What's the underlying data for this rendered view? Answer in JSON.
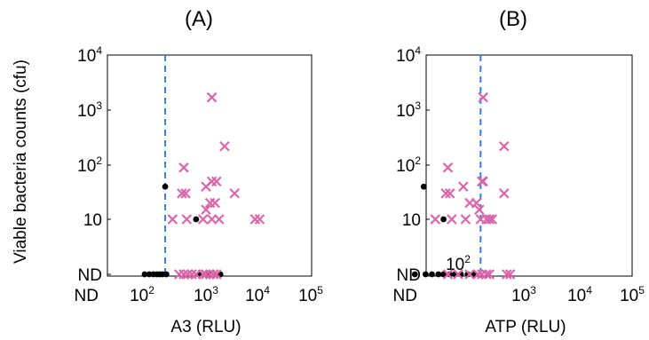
{
  "chart_data": [
    {
      "type": "scatter",
      "title": "(A)",
      "xlabel": "A3 (RLU)",
      "ylabel": "Viable bacteria counts (cfu)",
      "x_scale": "log",
      "y_scale": "log",
      "x_ticks": [
        {
          "value": "nd",
          "base": "ND",
          "exp": ""
        },
        {
          "value": 100,
          "base": "10",
          "exp": "2"
        },
        {
          "value": 1000,
          "base": "10",
          "exp": "3"
        },
        {
          "value": 10000,
          "base": "10",
          "exp": "4"
        },
        {
          "value": 100000,
          "base": "10",
          "exp": "5"
        }
      ],
      "y_ticks": [
        {
          "value": "nd",
          "base": "ND",
          "exp": ""
        },
        {
          "value": 10,
          "base": "10",
          "exp": ""
        },
        {
          "value": 100,
          "base": "10",
          "exp": "2"
        },
        {
          "value": 1000,
          "base": "10",
          "exp": "3"
        },
        {
          "value": 10000,
          "base": "10",
          "exp": "4"
        }
      ],
      "cutoff_x": 230,
      "series": [
        {
          "marker": "dot",
          "color": "#000000",
          "points": [
            [
              230,
              40
            ],
            [
              700,
              10
            ],
            [
              110,
              "ND"
            ],
            [
              130,
              "ND"
            ],
            [
              150,
              "ND"
            ],
            [
              170,
              "ND"
            ],
            [
              190,
              "ND"
            ],
            [
              210,
              "ND"
            ],
            [
              240,
              "ND"
            ],
            [
              800,
              "ND"
            ],
            [
              1100,
              "ND"
            ],
            [
              1900,
              "ND"
            ]
          ]
        },
        {
          "marker": "cross",
          "color": "#d966a8",
          "points": [
            [
              1300,
              1700
            ],
            [
              2300,
              220
            ],
            [
              450,
              90
            ],
            [
              1300,
              50
            ],
            [
              1600,
              50
            ],
            [
              1000,
              40
            ],
            [
              420,
              30
            ],
            [
              480,
              30
            ],
            [
              3600,
              30
            ],
            [
              1200,
              20
            ],
            [
              1500,
              20
            ],
            [
              1000,
              15
            ],
            [
              300,
              10
            ],
            [
              500,
              10
            ],
            [
              900,
              10
            ],
            [
              1300,
              10
            ],
            [
              1800,
              10
            ],
            [
              9000,
              10
            ],
            [
              11000,
              10
            ],
            [
              380,
              "ND"
            ],
            [
              450,
              "ND"
            ],
            [
              520,
              "ND"
            ],
            [
              600,
              "ND"
            ],
            [
              700,
              "ND"
            ],
            [
              900,
              "ND"
            ],
            [
              1000,
              "ND"
            ],
            [
              1200,
              "ND"
            ],
            [
              1400,
              "ND"
            ],
            [
              1600,
              "ND"
            ]
          ]
        }
      ]
    },
    {
      "type": "scatter",
      "title": "(B)",
      "xlabel": "ATP (RLU)",
      "ylabel": "",
      "x_scale": "log",
      "y_scale": "log",
      "x_ticks": [
        {
          "value": "nd",
          "base": "ND",
          "exp": ""
        },
        {
          "value": 1000,
          "base": "10",
          "exp": "3"
        },
        {
          "value": 10000,
          "base": "10",
          "exp": "4"
        },
        {
          "value": 100000,
          "base": "10",
          "exp": "5"
        }
      ],
      "y_ticks": [
        {
          "value": "nd",
          "base": "ND",
          "exp": ""
        },
        {
          "value": 10,
          "base": "10",
          "exp": ""
        },
        {
          "value": 100,
          "base": "10",
          "exp": "2"
        },
        {
          "value": 1000,
          "base": "10",
          "exp": "3"
        },
        {
          "value": 10000,
          "base": "10",
          "exp": "4"
        }
      ],
      "inner_tick": {
        "value": 100,
        "base": "10",
        "exp": "2"
      },
      "cutoff_x": 220,
      "series": [
        {
          "marker": "dot",
          "color": "#000000",
          "points": [
            [
              30,
              40
            ],
            [
              60,
              10
            ],
            [
              22,
              "ND"
            ],
            [
              32,
              "ND"
            ],
            [
              40,
              "ND"
            ],
            [
              50,
              "ND"
            ],
            [
              60,
              "ND"
            ],
            [
              75,
              "ND"
            ],
            [
              90,
              "ND"
            ],
            [
              110,
              "ND"
            ],
            [
              140,
              "ND"
            ],
            [
              170,
              "ND"
            ]
          ]
        },
        {
          "marker": "cross",
          "color": "#d966a8",
          "points": [
            [
              240,
              1700
            ],
            [
              500,
              220
            ],
            [
              70,
              90
            ],
            [
              230,
              50
            ],
            [
              240,
              50
            ],
            [
              120,
              40
            ],
            [
              65,
              30
            ],
            [
              75,
              30
            ],
            [
              500,
              30
            ],
            [
              150,
              20
            ],
            [
              190,
              20
            ],
            [
              210,
              15
            ],
            [
              45,
              10
            ],
            [
              80,
              10
            ],
            [
              130,
              10
            ],
            [
              220,
              10
            ],
            [
              270,
              10
            ],
            [
              300,
              10
            ],
            [
              330,
              10
            ],
            [
              70,
              "ND"
            ],
            [
              100,
              "ND"
            ],
            [
              150,
              "ND"
            ],
            [
              200,
              "ND"
            ],
            [
              230,
              "ND"
            ],
            [
              270,
              "ND"
            ],
            [
              300,
              "ND"
            ],
            [
              550,
              "ND"
            ],
            [
              620,
              "ND"
            ]
          ]
        }
      ]
    }
  ]
}
